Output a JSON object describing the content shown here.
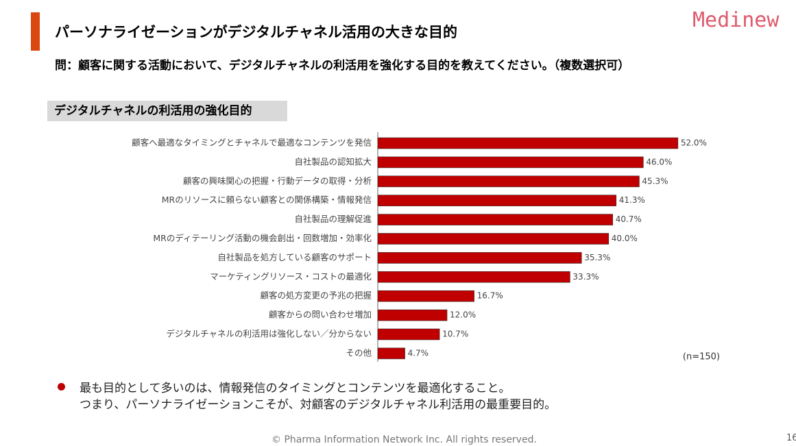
{
  "header": {
    "title": "パーソナライゼーションがデジタルチャネル活用の大きな目的",
    "question": "問：顧客に関する活動において、デジタルチャネルの利活用を強化する目的を教えてください。（複数選択可）",
    "logo": "Medinew"
  },
  "chart_data": {
    "type": "bar",
    "orientation": "horizontal",
    "title": "デジタルチャネルの利活用の強化目的",
    "categories": [
      "顧客へ最適なタイミングとチャネルで最適なコンテンツを発信",
      "自社製品の認知拡大",
      "顧客の興味関心の把握・行動データの取得・分析",
      "MRのリソースに頼らない顧客との関係構築・情報発信",
      "自社製品の理解促進",
      "MRのディテーリング活動の機会創出・回数増加・効率化",
      "自社製品を処方している顧客のサポート",
      "マーケティングリソース・コストの最適化",
      "顧客の処方変更の予兆の把握",
      "顧客からの問い合わせ増加",
      "デジタルチャネルの利活用は強化しない／分からない",
      "その他"
    ],
    "values": [
      52.0,
      46.0,
      45.3,
      41.3,
      40.7,
      40.0,
      35.3,
      33.3,
      16.7,
      12.0,
      10.7,
      4.7
    ],
    "value_labels": [
      "52.0%",
      "46.0%",
      "45.3%",
      "41.3%",
      "40.7%",
      "40.0%",
      "35.3%",
      "33.3%",
      "16.7%",
      "12.0%",
      "10.7%",
      "4.7%"
    ],
    "color": "#c00000",
    "note": "(n=150)"
  },
  "summary": [
    "最も目的として多いのは、情報発信のタイミングとコンテンツを最適化すること。",
    "つまり、パーソナライゼーションこそが、対顧客のデジタルチャネル利活用の最重要目的。"
  ],
  "footer": "© Pharma Information Network Inc.  All rights reserved.",
  "page_number": "16"
}
